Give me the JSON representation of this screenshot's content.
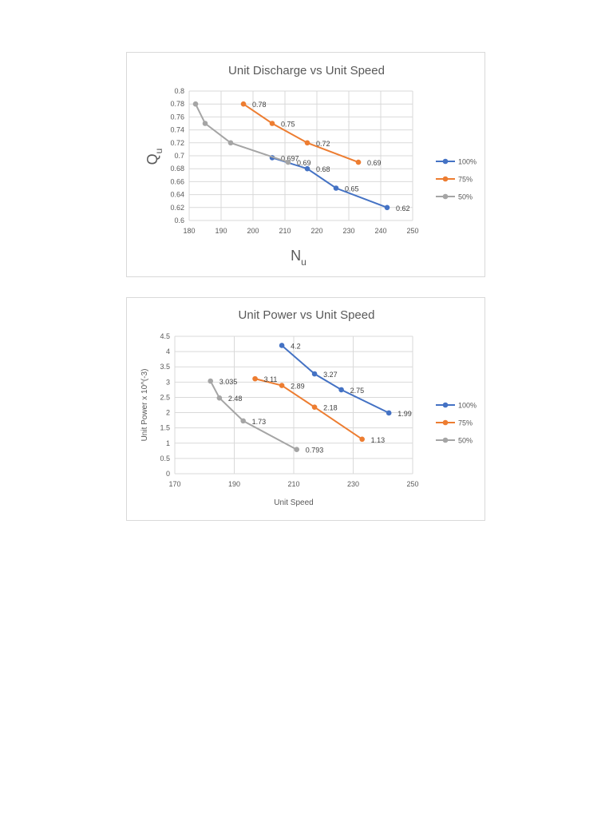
{
  "chart_data": [
    {
      "type": "line",
      "title": "Unit Discharge vs Unit Speed",
      "xlabel": "N",
      "xlabel_sub": "u",
      "ylabel": "Q",
      "ylabel_sub": "u",
      "xlim": [
        180,
        250
      ],
      "ylim": [
        0.6,
        0.8
      ],
      "x_ticks": [
        "180",
        "190",
        "200",
        "210",
        "220",
        "230",
        "240",
        "250"
      ],
      "y_ticks": [
        "0.6",
        "0.62",
        "0.64",
        "0.66",
        "0.68",
        "0.7",
        "0.72",
        "0.74",
        "0.76",
        "0.78",
        "0.8"
      ],
      "grid": true,
      "legend_position": "right",
      "series": [
        {
          "name": "100%",
          "color": "#4472c4",
          "x": [
            206,
            217,
            226,
            242
          ],
          "y": [
            0.697,
            0.68,
            0.65,
            0.62
          ],
          "labels": [
            "0.697",
            "0.68",
            "0.65",
            "0.62"
          ]
        },
        {
          "name": "75%",
          "color": "#ed7d31",
          "x": [
            197,
            206,
            217,
            233
          ],
          "y": [
            0.78,
            0.75,
            0.72,
            0.69
          ],
          "labels": [
            "0.78",
            "0.75",
            "0.72",
            "0.69"
          ]
        },
        {
          "name": "50%",
          "color": "#a5a5a5",
          "x": [
            182,
            185,
            193,
            211
          ],
          "y": [
            0.78,
            0.75,
            0.72,
            0.69
          ],
          "labels": [
            "",
            "",
            "",
            "0.69"
          ]
        }
      ]
    },
    {
      "type": "line",
      "title": "Unit Power vs Unit Speed",
      "xlabel": "Unit Speed",
      "ylabel": "Unit Power x 10^(-3)",
      "xlim": [
        170,
        250
      ],
      "ylim": [
        0,
        4.5
      ],
      "x_ticks": [
        "170",
        "190",
        "210",
        "230",
        "250"
      ],
      "y_ticks": [
        "0",
        "0.5",
        "1",
        "1.5",
        "2",
        "2.5",
        "3",
        "3.5",
        "4",
        "4.5"
      ],
      "grid": true,
      "legend_position": "right",
      "series": [
        {
          "name": "100%",
          "color": "#4472c4",
          "x": [
            206,
            217,
            226,
            242
          ],
          "y": [
            4.2,
            3.27,
            2.75,
            1.99
          ],
          "labels": [
            "4.2",
            "3.27",
            "2.75",
            "1.99"
          ]
        },
        {
          "name": "75%",
          "color": "#ed7d31",
          "x": [
            197,
            206,
            217,
            233
          ],
          "y": [
            3.11,
            2.89,
            2.18,
            1.13
          ],
          "labels": [
            "3.11",
            "2.89",
            "2.18",
            "1.13"
          ]
        },
        {
          "name": "50%",
          "color": "#a5a5a5",
          "x": [
            182,
            185,
            193,
            211
          ],
          "y": [
            3.035,
            2.48,
            1.73,
            0.793
          ],
          "labels": [
            "3.035",
            "2.48",
            "1.73",
            "0.793"
          ]
        }
      ]
    }
  ]
}
